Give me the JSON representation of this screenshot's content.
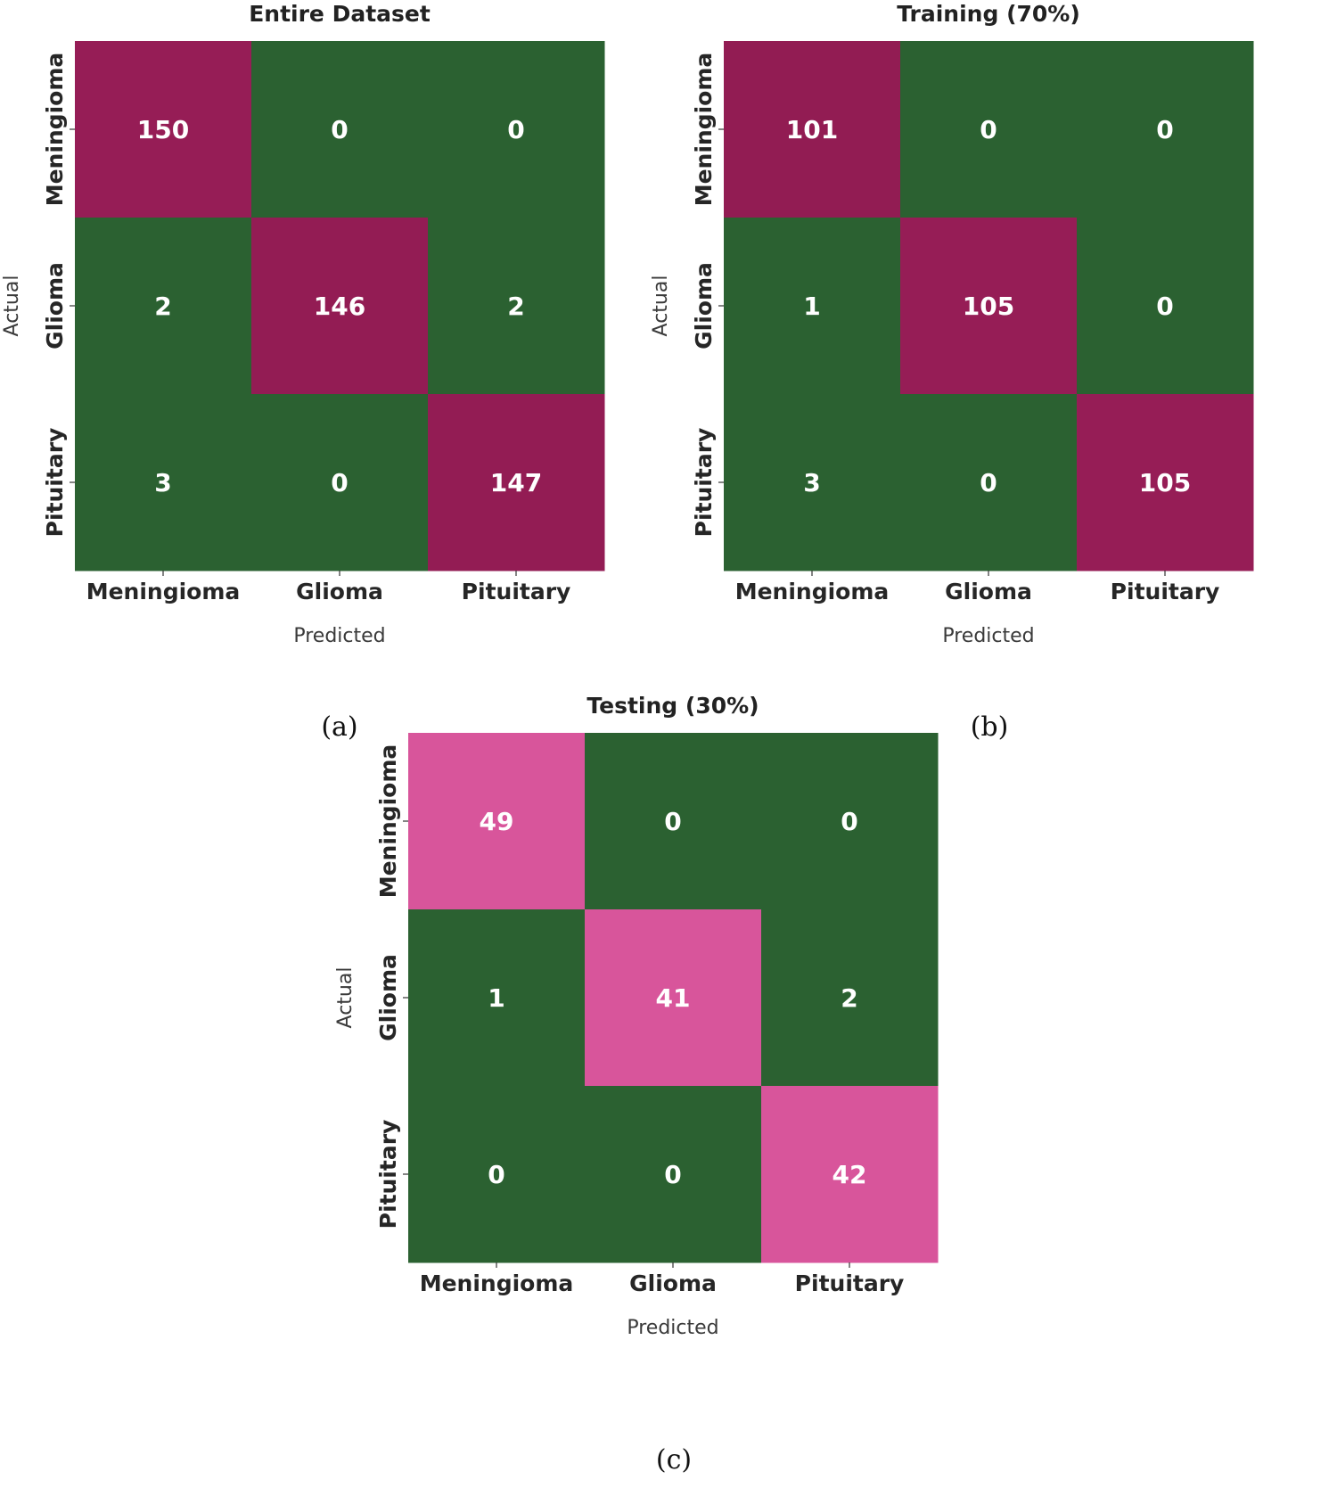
{
  "chart_data": [
    {
      "type": "heatmap",
      "title": "Entire Dataset",
      "xlabel": "Predicted",
      "ylabel": "Actual",
      "x_categories": [
        "Meningioma",
        "Glioma",
        "Pituitary"
      ],
      "y_categories": [
        "Meningioma",
        "Glioma",
        "Pituitary"
      ],
      "values": [
        [
          150,
          0,
          0
        ],
        [
          2,
          146,
          2
        ],
        [
          3,
          0,
          147
        ]
      ],
      "caption": "(a)"
    },
    {
      "type": "heatmap",
      "title": "Training (70%)",
      "xlabel": "Predicted",
      "ylabel": "Actual",
      "x_categories": [
        "Meningioma",
        "Glioma",
        "Pituitary"
      ],
      "y_categories": [
        "Meningioma",
        "Glioma",
        "Pituitary"
      ],
      "values": [
        [
          101,
          0,
          0
        ],
        [
          1,
          105,
          0
        ],
        [
          3,
          0,
          105
        ]
      ],
      "caption": "(b)"
    },
    {
      "type": "heatmap",
      "title": "Testing (30%)",
      "xlabel": "Predicted",
      "ylabel": "Actual",
      "x_categories": [
        "Meningioma",
        "Glioma",
        "Pituitary"
      ],
      "y_categories": [
        "Meningioma",
        "Glioma",
        "Pituitary"
      ],
      "values": [
        [
          49,
          0,
          0
        ],
        [
          1,
          41,
          2
        ],
        [
          0,
          0,
          42
        ]
      ],
      "caption": "(c)"
    }
  ],
  "colors": {
    "low": "#2b6131",
    "mid": "#3a7a3e",
    "high": "#8b1a4e",
    "pink": "#d8559b"
  }
}
